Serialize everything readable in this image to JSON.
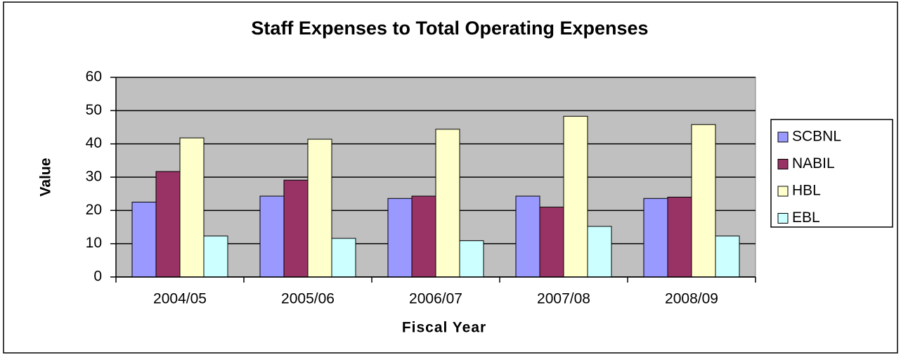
{
  "chart_data": {
    "type": "bar",
    "title": "Staff Expenses to Total Operating Expenses",
    "x_label": "Fiscal Year",
    "y_label": "Value",
    "categories": [
      "2004/05",
      "2005/06",
      "2006/07",
      "2007/08",
      "2008/09"
    ],
    "series": [
      {
        "name": "SCBNL",
        "color": "#9999ff",
        "values": [
          22.5,
          24.3,
          23.6,
          24.3,
          23.6
        ]
      },
      {
        "name": "NABIL",
        "color": "#993366",
        "values": [
          31.7,
          29.1,
          24.3,
          21.0,
          24.0
        ]
      },
      {
        "name": "HBL",
        "color": "#ffffcc",
        "values": [
          41.8,
          41.4,
          44.4,
          48.3,
          45.8
        ]
      },
      {
        "name": "EBL",
        "color": "#ccffff",
        "values": [
          12.3,
          11.6,
          10.9,
          15.2,
          12.3
        ]
      }
    ],
    "ylim": [
      0,
      60
    ],
    "yticks": [
      0,
      10,
      20,
      30,
      40,
      50,
      60
    ],
    "grid": true,
    "plot_background": "#c0c0c0",
    "legend": "right"
  }
}
